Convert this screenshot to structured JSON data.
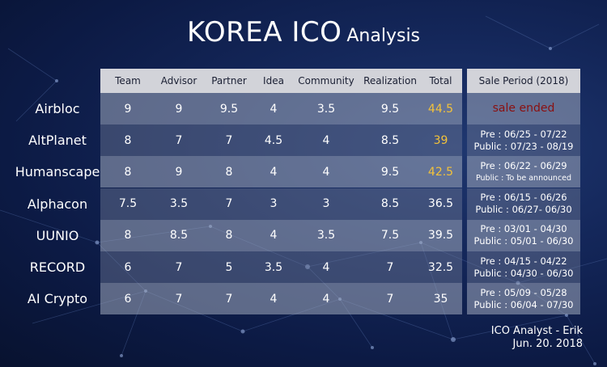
{
  "title": {
    "main": "KOREA ICO",
    "sub": "Analysis"
  },
  "columns": [
    "Team",
    "Advisor",
    "Partner",
    "Idea",
    "Community",
    "Realization",
    "Total"
  ],
  "sale_header": "Sale Period (2018)",
  "rows": [
    {
      "name": "Airbloc",
      "values": [
        "9",
        "9",
        "9.5",
        "4",
        "3.5",
        "9.5",
        "44.5"
      ],
      "total_highlight": true,
      "sale": {
        "line1": "sale ended",
        "line2": "",
        "ended": true
      }
    },
    {
      "name": "AltPlanet",
      "values": [
        "8",
        "7",
        "7",
        "4.5",
        "4",
        "8.5",
        "39"
      ],
      "total_highlight": true,
      "sale": {
        "line1": "Pre : 06/25 - 07/22",
        "line2": "Public : 07/23 - 08/19"
      }
    },
    {
      "name": "Humanscape",
      "values": [
        "8",
        "9",
        "8",
        "4",
        "4",
        "9.5",
        "42.5"
      ],
      "total_highlight": true,
      "sale": {
        "line1": "Pre : 06/22 - 06/29",
        "line2": "Public : To be announced",
        "line2_small": true
      }
    },
    {
      "name": "Alphacon",
      "values": [
        "7.5",
        "3.5",
        "7",
        "3",
        "3",
        "8.5",
        "36.5"
      ],
      "total_highlight": false,
      "sale": {
        "line1": "Pre : 06/15 - 06/26",
        "line2": "Public : 06/27- 06/30"
      }
    },
    {
      "name": "UUNIO",
      "values": [
        "8",
        "8.5",
        "8",
        "4",
        "3.5",
        "7.5",
        "39.5"
      ],
      "total_highlight": false,
      "sale": {
        "line1": "Pre : 03/01 - 04/30",
        "line2": "Public : 05/01 - 06/30"
      }
    },
    {
      "name": "RECORD",
      "values": [
        "6",
        "7",
        "5",
        "3.5",
        "4",
        "7",
        "32.5"
      ],
      "total_highlight": false,
      "sale": {
        "line1": "Pre : 04/15 - 04/22",
        "line2": "Public : 04/30 - 06/30"
      }
    },
    {
      "name": "AI Crypto",
      "values": [
        "6",
        "7",
        "7",
        "4",
        "4",
        "7",
        "35"
      ],
      "total_highlight": false,
      "sale": {
        "line1": "Pre : 05/09 - 05/28",
        "line2": "Public : 06/04 - 07/30"
      }
    }
  ],
  "credit": {
    "line1": "ICO Analyst - Erik",
    "line2": "Jun. 20. 2018"
  },
  "colors": {
    "highlight": "#f3c23a",
    "ended": "#8a1010",
    "header_bg": "#d2d3d9"
  }
}
